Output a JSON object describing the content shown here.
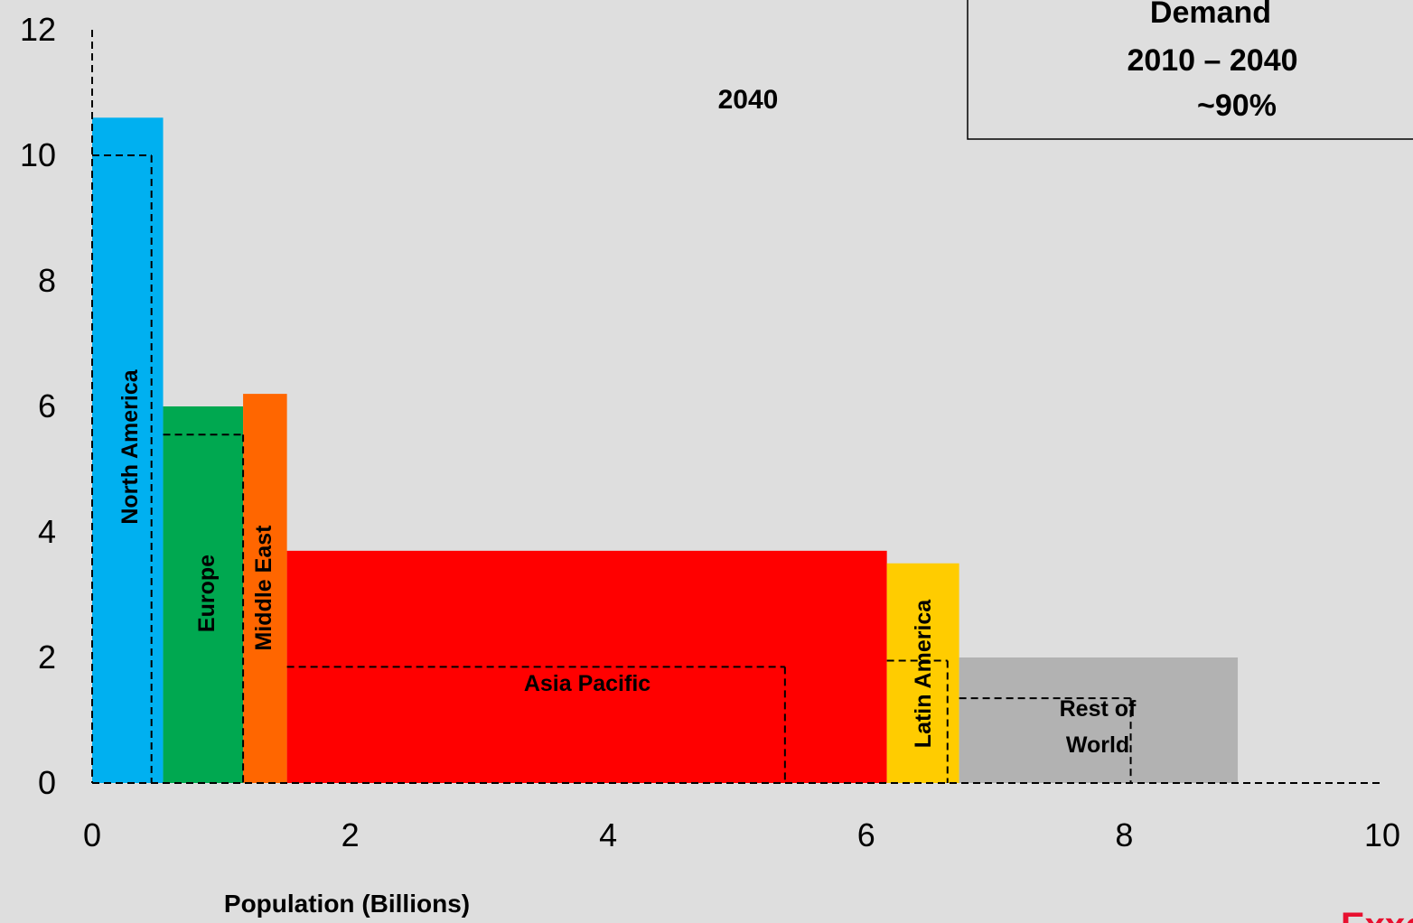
{
  "chart_data": {
    "type": "bar",
    "variant": "variable-width",
    "title": "2040",
    "xlabel": "Population (Billions)",
    "ylabel": "",
    "xlim": [
      0,
      10
    ],
    "ylim": [
      0,
      12
    ],
    "x_ticks": [
      "0",
      "2",
      "4",
      "6",
      "8",
      "10"
    ],
    "y_ticks": [
      "0",
      "2",
      "4",
      "6",
      "8",
      "10",
      "12"
    ],
    "grid": false,
    "series": [
      {
        "values": [
          {
            "label": "North America",
            "population": 0.55,
            "value": 10.6,
            "baseline_population": 0.46,
            "baseline_value": 10.0,
            "color": "#00b0f0"
          },
          {
            "label": "Europe",
            "population": 0.62,
            "value": 6.0,
            "baseline_population": 0.62,
            "baseline_value": 5.55,
            "color": "#00a850"
          },
          {
            "label": "Middle East",
            "population": 0.34,
            "value": 6.2,
            "baseline_population": 0.22,
            "baseline_value": 0,
            "color": "#ff6600"
          },
          {
            "label": "Asia Pacific",
            "population": 4.65,
            "value": 3.7,
            "baseline_population": 3.86,
            "baseline_value": 1.85,
            "color": "#ff0000"
          },
          {
            "label": "Latin America",
            "population": 0.56,
            "value": 3.5,
            "baseline_population": 0.47,
            "baseline_value": 1.95,
            "color": "#ffcc00"
          },
          {
            "label": "Rest of World",
            "population": 2.16,
            "value": 2.0,
            "baseline_population": 1.33,
            "baseline_value": 1.35,
            "color": "#b2b2b2"
          }
        ]
      }
    ],
    "annotation_box": {
      "line1": "Demand",
      "line2": "2010 – 2040",
      "line3": "~90%"
    },
    "logo_text": "ExxonM"
  }
}
